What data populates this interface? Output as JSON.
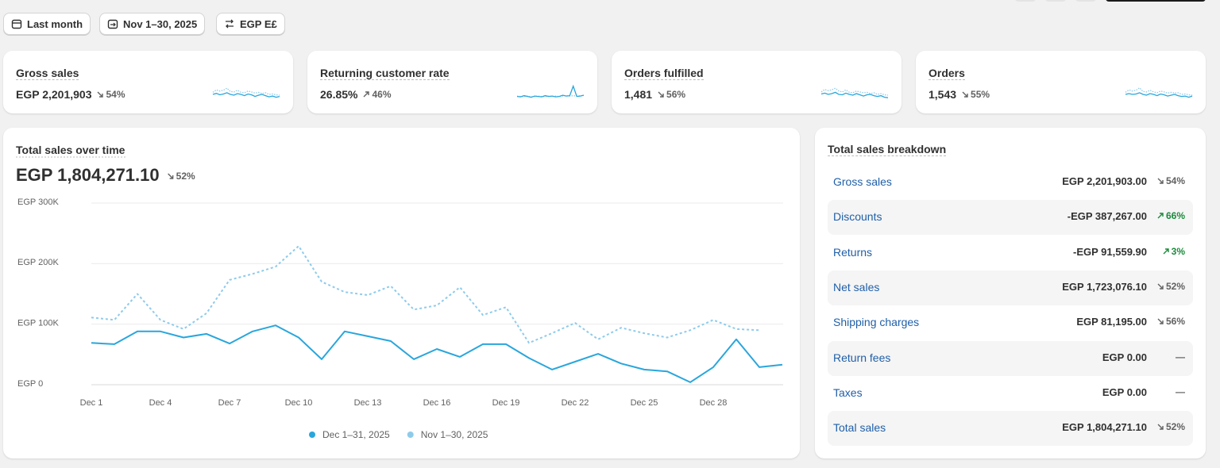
{
  "filters": [
    "Last month",
    "Nov 1–30, 2025",
    "EGP E£"
  ],
  "kpis": [
    {
      "label": "Gross sales",
      "value": "EGP 2,201,903",
      "change": "54%",
      "trend": "down",
      "sparkline": {
        "current": [
          50,
          55,
          48,
          52,
          58,
          50,
          46,
          54,
          50,
          44,
          52,
          48,
          40,
          46,
          50,
          44,
          38,
          42,
          36,
          40
        ],
        "previous": [
          60,
          72,
          66,
          70,
          80,
          64,
          62,
          70,
          60,
          58,
          66,
          62,
          56,
          60,
          54,
          58,
          50,
          52,
          48,
          46
        ]
      }
    },
    {
      "label": "Returning customer rate",
      "value": "26.85%",
      "change": "46%",
      "trend": "up",
      "sparkline": {
        "current": [
          40,
          38,
          44,
          40,
          36,
          42,
          40,
          38,
          44,
          40,
          42,
          38,
          40,
          46,
          42,
          44,
          90,
          40,
          42,
          46
        ],
        "previous": [
          42,
          40,
          40,
          42,
          38,
          40,
          42,
          40,
          40,
          42,
          40,
          42,
          40,
          42,
          44,
          42,
          44,
          42,
          44,
          44
        ]
      }
    },
    {
      "label": "Orders fulfilled",
      "value": "1,481",
      "change": "56%",
      "trend": "down",
      "sparkline": {
        "current": [
          52,
          56,
          50,
          54,
          60,
          50,
          48,
          56,
          50,
          46,
          54,
          48,
          42,
          48,
          50,
          44,
          40,
          44,
          36,
          34
        ],
        "previous": [
          62,
          74,
          68,
          72,
          80,
          66,
          62,
          72,
          60,
          58,
          66,
          62,
          58,
          60,
          54,
          58,
          50,
          54,
          48,
          46
        ]
      }
    },
    {
      "label": "Orders",
      "value": "1,543",
      "change": "55%",
      "trend": "down",
      "sparkline": {
        "current": [
          50,
          54,
          50,
          52,
          58,
          50,
          46,
          54,
          50,
          44,
          52,
          48,
          42,
          46,
          50,
          44,
          40,
          42,
          36,
          42
        ],
        "previous": [
          60,
          72,
          66,
          70,
          82,
          64,
          62,
          70,
          62,
          58,
          66,
          62,
          56,
          60,
          56,
          58,
          50,
          52,
          48,
          46
        ]
      }
    }
  ],
  "chart_data": {
    "type": "line",
    "title": "Total sales over time",
    "total": "EGP 1,804,271.10",
    "change": "52%",
    "trend": "down",
    "categories": [
      "Dec 1",
      null,
      null,
      "Dec 4",
      null,
      null,
      "Dec 7",
      null,
      null,
      "Dec 10",
      null,
      null,
      "Dec 13",
      null,
      null,
      "Dec 16",
      null,
      null,
      "Dec 19",
      null,
      null,
      "Dec 22",
      null,
      null,
      "Dec 25",
      null,
      null,
      "Dec 28",
      null,
      null,
      null
    ],
    "series": [
      {
        "name": "Dec 1–31, 2025",
        "color": "#29a6dc",
        "dash": false,
        "values": [
          69000,
          67000,
          88000,
          88000,
          78000,
          84000,
          68000,
          88000,
          98000,
          78000,
          42000,
          88000,
          80000,
          72000,
          42000,
          59000,
          46000,
          67000,
          67000,
          44000,
          25000,
          38000,
          51000,
          35000,
          25000,
          22000,
          4000,
          29000,
          75000,
          29000,
          33000
        ]
      },
      {
        "name": "Nov 1–30, 2025",
        "color": "#8ecbeb",
        "dash": true,
        "values": [
          111000,
          107000,
          150000,
          107000,
          92000,
          118000,
          173000,
          183000,
          195000,
          229000,
          170000,
          153000,
          148000,
          163000,
          124000,
          131000,
          161000,
          115000,
          128000,
          69000,
          85000,
          102000,
          75000,
          94000,
          85000,
          78000,
          90000,
          107000,
          92000,
          90000,
          null
        ]
      }
    ],
    "ylim": [
      0,
      300000
    ],
    "yticks": [
      {
        "value": 0,
        "label": "EGP 0"
      },
      {
        "value": 100000,
        "label": "EGP 100K"
      },
      {
        "value": 200000,
        "label": "EGP 200K"
      },
      {
        "value": 300000,
        "label": "EGP 300K"
      }
    ],
    "grid": true,
    "legend": "bottom"
  },
  "breakdown": {
    "title": "Total sales breakdown",
    "rows": [
      {
        "label": "Gross sales",
        "value": "EGP 2,201,903.00",
        "change": "54%",
        "trend": "down",
        "tone": "neutral"
      },
      {
        "label": "Discounts",
        "value": "-EGP 387,267.00",
        "change": "66%",
        "trend": "up",
        "tone": "positive"
      },
      {
        "label": "Returns",
        "value": "-EGP 91,559.90",
        "change": "3%",
        "trend": "up",
        "tone": "positive"
      },
      {
        "label": "Net sales",
        "value": "EGP 1,723,076.10",
        "change": "52%",
        "trend": "down",
        "tone": "neutral"
      },
      {
        "label": "Shipping charges",
        "value": "EGP 81,195.00",
        "change": "56%",
        "trend": "down",
        "tone": "neutral"
      },
      {
        "label": "Return fees",
        "value": "EGP 0.00",
        "change": "—",
        "trend": null,
        "tone": "neutral"
      },
      {
        "label": "Taxes",
        "value": "EGP 0.00",
        "change": "—",
        "trend": null,
        "tone": "neutral"
      },
      {
        "label": "Total sales",
        "value": "EGP 1,804,271.10",
        "change": "52%",
        "trend": "down",
        "tone": "neutral"
      }
    ]
  }
}
